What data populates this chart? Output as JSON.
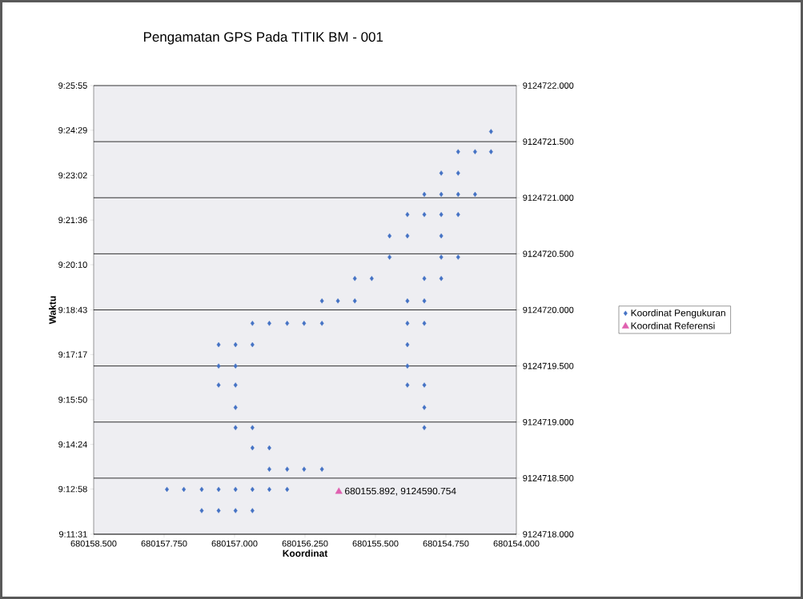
{
  "chart_data": {
    "type": "scatter",
    "title": "Pengamatan GPS Pada TITIK BM - 001",
    "xlabel": "Koordinat",
    "ylabel": "Waktu",
    "xlim": [
      680158.5,
      680154.0
    ],
    "xticks": [
      {
        "value": 680158.5,
        "label": "680158.500"
      },
      {
        "value": 680157.75,
        "label": "680157.750"
      },
      {
        "value": 680157.0,
        "label": "680157.000"
      },
      {
        "value": 680156.25,
        "label": "680156.250"
      },
      {
        "value": 680155.5,
        "label": "680155.500"
      },
      {
        "value": 680154.75,
        "label": "680154.750"
      },
      {
        "value": 680154.0,
        "label": "680154.000"
      }
    ],
    "ylim": [
      9.19194,
      9.43194
    ],
    "yticks": [
      {
        "value": 9.19194,
        "label": "9:11:31"
      },
      {
        "value": 9.21611,
        "label": "9:12:58"
      },
      {
        "value": 9.24,
        "label": "9:14:24"
      },
      {
        "value": 9.26389,
        "label": "9:15:50"
      },
      {
        "value": 9.28806,
        "label": "9:17:17"
      },
      {
        "value": 9.31194,
        "label": "9:18:43"
      },
      {
        "value": 9.33611,
        "label": "9:20:10"
      },
      {
        "value": 9.36,
        "label": "9:21:36"
      },
      {
        "value": 9.38389,
        "label": "9:23:02"
      },
      {
        "value": 9.40806,
        "label": "9:24:29"
      },
      {
        "value": 9.43194,
        "label": "9:25:55"
      }
    ],
    "y2lim": [
      9124718.0,
      9124722.0
    ],
    "y2ticks": [
      {
        "value": 9124718.0,
        "label": "9124718.000"
      },
      {
        "value": 9124718.5,
        "label": "9124718.500"
      },
      {
        "value": 9124719.0,
        "label": "9124719.000"
      },
      {
        "value": 9124719.5,
        "label": "9124719.500"
      },
      {
        "value": 9124720.0,
        "label": "9124720.000"
      },
      {
        "value": 9124720.5,
        "label": "9124720.500"
      },
      {
        "value": 9124721.0,
        "label": "9124721.000"
      },
      {
        "value": 9124721.5,
        "label": "9124721.500"
      },
      {
        "value": 9124722.0,
        "label": "9124722.000"
      }
    ],
    "grid": "y",
    "legend": "right",
    "series": [
      {
        "name": "Koordinat Pengukuran",
        "color": "#4472c4",
        "marker": "diamond",
        "axis": "y2",
        "x": [
          680157.35,
          680157.17,
          680156.99,
          680156.81,
          680157.72,
          680157.54,
          680157.35,
          680157.17,
          680156.99,
          680156.81,
          680156.63,
          680156.44,
          680156.63,
          680156.44,
          680156.26,
          680156.07,
          680156.81,
          680156.63,
          680156.99,
          680156.81,
          680154.98,
          680156.99,
          680154.98,
          680157.17,
          680156.99,
          680155.16,
          680154.98,
          680157.17,
          680156.99,
          680155.16,
          680157.17,
          680156.99,
          680156.81,
          680155.16,
          680156.81,
          680156.63,
          680156.44,
          680156.26,
          680156.07,
          680155.16,
          680154.98,
          680156.07,
          680155.9,
          680155.72,
          680155.16,
          680154.98,
          680155.72,
          680155.54,
          680154.98,
          680154.8,
          680155.35,
          680154.8,
          680154.62,
          680155.35,
          680155.16,
          680154.8,
          680155.16,
          680154.98,
          680154.8,
          680154.62,
          680154.98,
          680154.8,
          680154.62,
          680154.44,
          680154.8,
          680154.62,
          680154.62,
          680154.44,
          680154.27,
          680154.27
        ],
        "values": [
          9124718.21,
          9124718.21,
          9124718.21,
          9124718.21,
          9124718.4,
          9124718.4,
          9124718.4,
          9124718.4,
          9124718.4,
          9124718.4,
          9124718.4,
          9124718.4,
          9124718.58,
          9124718.58,
          9124718.58,
          9124718.58,
          9124718.77,
          9124718.77,
          9124718.95,
          9124718.95,
          9124718.95,
          9124719.13,
          9124719.13,
          9124719.33,
          9124719.33,
          9124719.33,
          9124719.33,
          9124719.5,
          9124719.5,
          9124719.5,
          9124719.69,
          9124719.69,
          9124719.69,
          9124719.69,
          9124719.88,
          9124719.88,
          9124719.88,
          9124719.88,
          9124719.88,
          9124719.88,
          9124719.88,
          9124720.08,
          9124720.08,
          9124720.08,
          9124720.08,
          9124720.08,
          9124720.28,
          9124720.28,
          9124720.28,
          9124720.28,
          9124720.47,
          9124720.47,
          9124720.47,
          9124720.66,
          9124720.66,
          9124720.66,
          9124720.85,
          9124720.85,
          9124720.85,
          9124720.85,
          9124721.03,
          9124721.03,
          9124721.03,
          9124721.03,
          9124721.22,
          9124721.22,
          9124721.41,
          9124721.41,
          9124721.41,
          9124721.59
        ]
      },
      {
        "name": "Koordinat Referensi",
        "color": "#e060b0",
        "marker": "triangle",
        "axis": "y2",
        "x": [
          680155.89
        ],
        "values": [
          9124718.38
        ]
      }
    ],
    "annotations": [
      "680155.892, 9124590.754"
    ]
  }
}
